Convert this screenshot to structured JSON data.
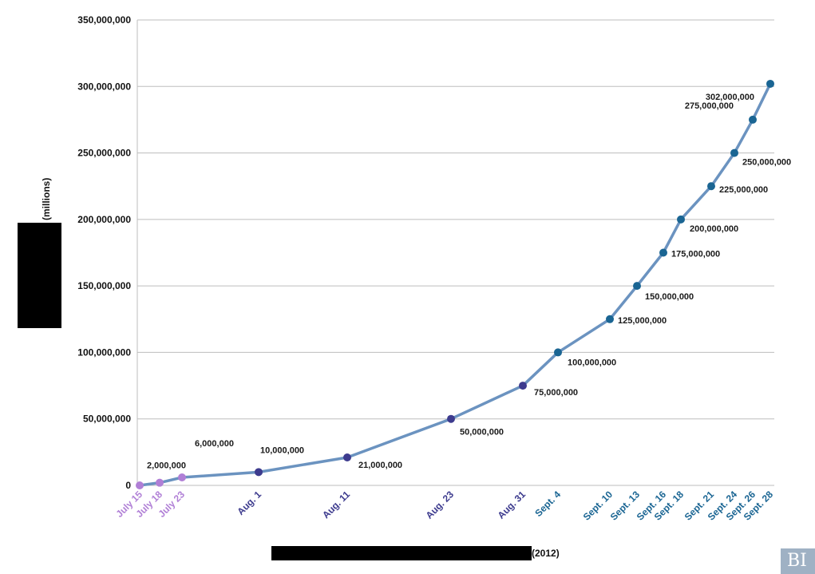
{
  "chart_data": {
    "type": "line",
    "ylabel": "(millions)",
    "xlabel": "(2012)",
    "ylim": [
      0,
      350000000
    ],
    "yticks": [
      {
        "value": 0,
        "label": "0"
      },
      {
        "value": 50000000,
        "label": "50,000,000"
      },
      {
        "value": 100000000,
        "label": "100,000,000"
      },
      {
        "value": 150000000,
        "label": "150,000,000"
      },
      {
        "value": 200000000,
        "label": "200,000,000"
      },
      {
        "value": 250000000,
        "label": "250,000,000"
      },
      {
        "value": 300000000,
        "label": "300,000,000"
      },
      {
        "value": 350000000,
        "label": "350,000,000"
      }
    ],
    "grid": true,
    "line_color": "#6b93c0",
    "points": [
      {
        "x": "July 15",
        "y": 0,
        "label": "",
        "color": "#b07fd6"
      },
      {
        "x": "July 18",
        "y": 2000000,
        "label": "2,000,000",
        "color": "#b07fd6"
      },
      {
        "x": "July 23",
        "y": 6000000,
        "label": "6,000,000",
        "color": "#b07fd6"
      },
      {
        "x": "Aug. 1",
        "y": 10000000,
        "label": "10,000,000",
        "color": "#3d3b8e"
      },
      {
        "x": "Aug. 11",
        "y": 21000000,
        "label": "21,000,000",
        "color": "#3d3b8e"
      },
      {
        "x": "Aug. 23",
        "y": 50000000,
        "label": "50,000,000",
        "color": "#3d3b8e"
      },
      {
        "x": "Aug. 31",
        "y": 75000000,
        "label": "75,000,000",
        "color": "#3d3b8e"
      },
      {
        "x": "Sept. 4",
        "y": 100000000,
        "label": "100,000,000",
        "color": "#1a6593"
      },
      {
        "x": "Sept. 10",
        "y": 125000000,
        "label": "125,000,000",
        "color": "#1a6593"
      },
      {
        "x": "Sept. 13",
        "y": 150000000,
        "label": "150,000,000",
        "color": "#1a6593"
      },
      {
        "x": "Sept. 16",
        "y": 175000000,
        "label": "175,000,000",
        "color": "#1a6593"
      },
      {
        "x": "Sept. 18",
        "y": 200000000,
        "label": "200,000,000",
        "color": "#1a6593"
      },
      {
        "x": "Sept. 21",
        "y": 225000000,
        "label": "225,000,000",
        "color": "#1a6593"
      },
      {
        "x": "Sept. 24",
        "y": 250000000,
        "label": "250,000,000",
        "color": "#1a6593"
      },
      {
        "x": "Sept. 26",
        "y": 275000000,
        "label": "275,000,000",
        "color": "#1a6593"
      },
      {
        "x": "Sept. 28",
        "y": 302000000,
        "label": "302,000,000",
        "color": "#1a6593"
      }
    ]
  },
  "watermark": "BI"
}
